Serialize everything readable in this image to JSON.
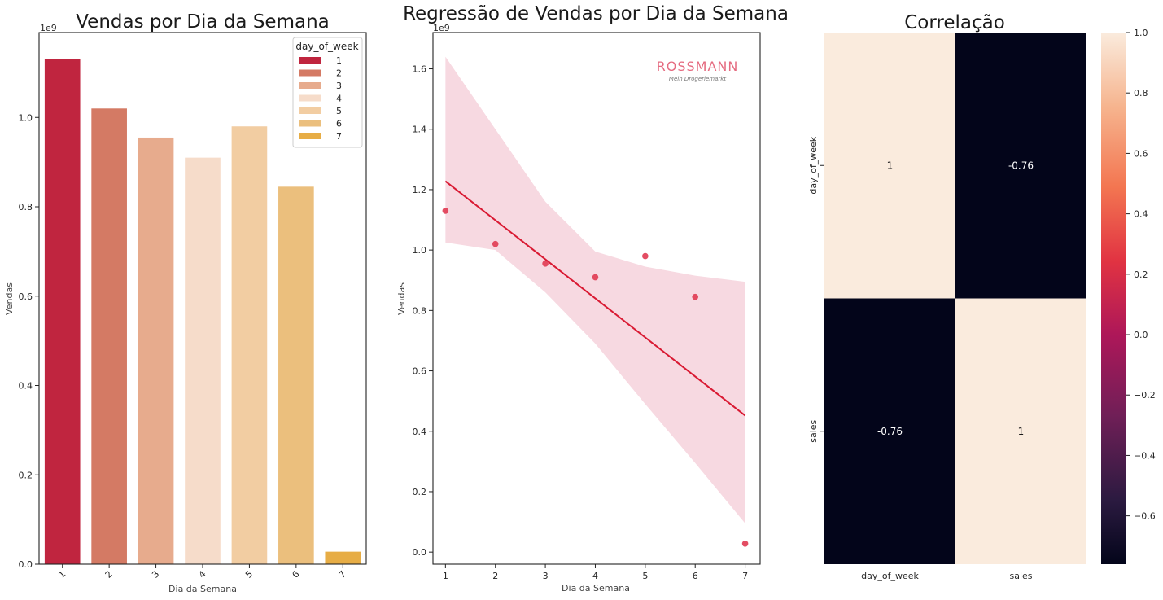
{
  "chart_data": [
    {
      "type": "bar",
      "title": "Vendas por Dia da Semana",
      "xlabel": "Dia da Semana",
      "ylabel": "Vendas",
      "offset_label": "1e9",
      "categories": [
        "1",
        "2",
        "3",
        "4",
        "5",
        "6",
        "7"
      ],
      "values": [
        1.13,
        1.02,
        0.955,
        0.91,
        0.98,
        0.845,
        0.028
      ],
      "ylim": [
        0,
        1.19
      ],
      "yticks": [
        "0.0",
        "0.2",
        "0.4",
        "0.6",
        "0.8",
        "1.0"
      ],
      "colors": [
        "#c0253f",
        "#d47a64",
        "#e7ab8d",
        "#f6dcca",
        "#f2cda2",
        "#ebbf7d",
        "#e7ad45"
      ],
      "legend": {
        "title": "day_of_week",
        "placement": "top-right",
        "entries": [
          "1",
          "2",
          "3",
          "4",
          "5",
          "6",
          "7"
        ]
      },
      "grid": false
    },
    {
      "type": "scatter",
      "title": "Regressão de Vendas por Dia da Semana",
      "xlabel": "Dia da Semana",
      "ylabel": "Vendas",
      "offset_label": "1e9",
      "x": [
        1,
        2,
        3,
        4,
        5,
        6,
        7
      ],
      "y": [
        1.13,
        1.02,
        0.955,
        0.91,
        0.98,
        0.845,
        0.028
      ],
      "regression_line": {
        "x": [
          1,
          7
        ],
        "y": [
          1.228,
          0.452
        ]
      },
      "confidence_band": {
        "x": [
          1,
          2,
          3,
          4,
          5,
          6,
          7
        ],
        "upper": [
          1.64,
          1.4,
          1.16,
          0.995,
          0.945,
          0.915,
          0.895
        ],
        "lower": [
          1.025,
          1.0,
          0.86,
          0.69,
          0.49,
          0.295,
          0.095
        ]
      },
      "xlim": [
        0.75,
        7.3
      ],
      "ylim": [
        -0.04,
        1.72
      ],
      "xticks": [
        "1",
        "2",
        "3",
        "4",
        "5",
        "6",
        "7"
      ],
      "yticks": [
        "0.0",
        "0.2",
        "0.4",
        "0.6",
        "0.8",
        "1.0",
        "1.2",
        "1.4",
        "1.6"
      ],
      "point_color": "#e03a52",
      "line_color": "#d91a33",
      "band_color": "#f7d9e1",
      "grid": false
    },
    {
      "type": "heatmap",
      "title": "Correlação",
      "rows": [
        "day_of_week",
        "sales"
      ],
      "cols": [
        "day_of_week",
        "sales"
      ],
      "values": [
        [
          "1",
          "-0.76"
        ],
        [
          "-0.76",
          "1"
        ]
      ],
      "numeric": [
        [
          1,
          -0.76
        ],
        [
          -0.76,
          1
        ]
      ],
      "colorbar": {
        "min": -0.76,
        "max": 1.0,
        "ticks": [
          "1.0",
          "0.8",
          "0.6",
          "0.4",
          "0.2",
          "0.0",
          "−0.2",
          "−0.4",
          "−0.6"
        ]
      }
    }
  ],
  "logo": {
    "brand": "ROSSMANN",
    "tagline": "Mein Drogeriemarkt"
  }
}
